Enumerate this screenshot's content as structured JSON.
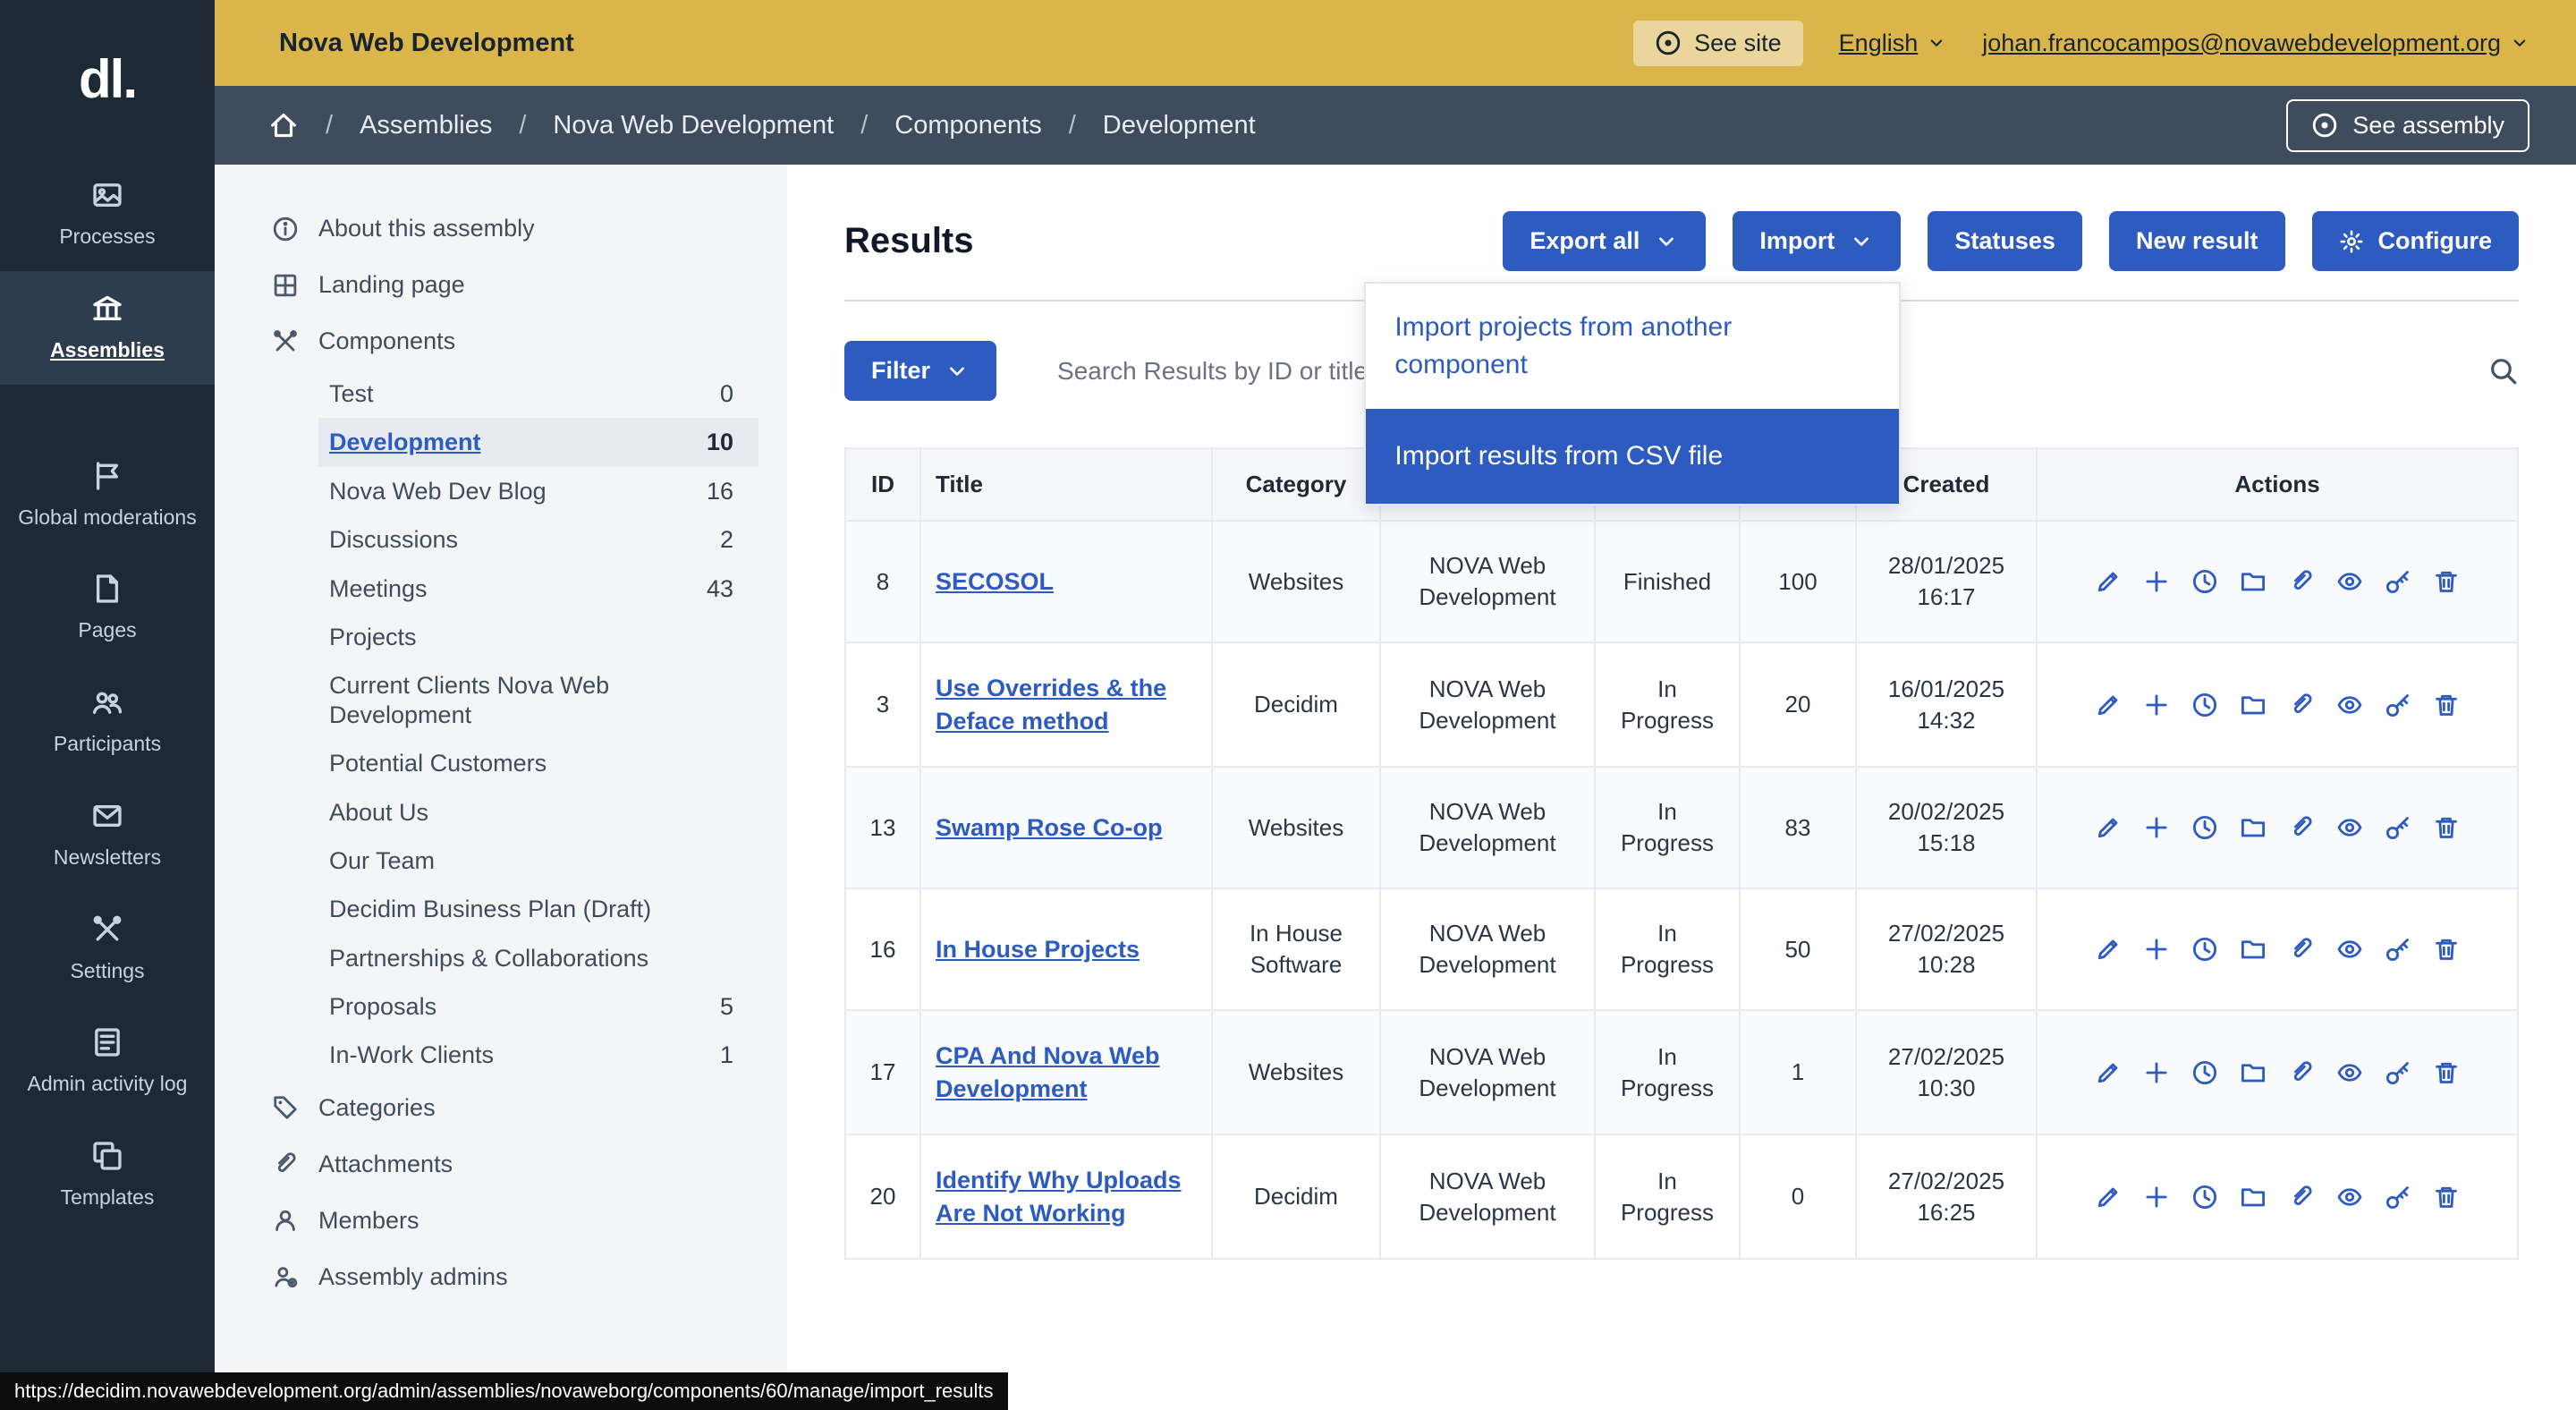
{
  "topbar": {
    "title": "Nova Web Development",
    "see_site_label": "See site",
    "language_label": "English",
    "user_email": "johan.francocampos@novawebdevelopment.org"
  },
  "breadcrumb": {
    "items": [
      "Assemblies",
      "Nova Web Development",
      "Components",
      "Development"
    ],
    "see_assembly_label": "See assembly"
  },
  "sidebar": {
    "items": [
      {
        "label": "Processes",
        "icon": "photo",
        "active": false
      },
      {
        "label": "Assemblies",
        "icon": "bank",
        "active": true
      },
      {
        "label": "Global moderations",
        "icon": "flag",
        "active": false
      },
      {
        "label": "Pages",
        "icon": "doc",
        "active": false
      },
      {
        "label": "Participants",
        "icon": "people",
        "active": false
      },
      {
        "label": "Newsletters",
        "icon": "mail",
        "active": false
      },
      {
        "label": "Settings",
        "icon": "tools",
        "active": false
      },
      {
        "label": "Admin activity log",
        "icon": "list",
        "active": false
      },
      {
        "label": "Templates",
        "icon": "copy",
        "active": false
      }
    ]
  },
  "submenu": {
    "items": [
      {
        "type": "top",
        "label": "About this assembly",
        "icon": "info"
      },
      {
        "type": "top",
        "label": "Landing page",
        "icon": "grid"
      },
      {
        "type": "top",
        "label": "Components",
        "icon": "tools"
      },
      {
        "type": "child",
        "label": "Test",
        "count": "0",
        "active": false
      },
      {
        "type": "child",
        "label": "Development",
        "count": "10",
        "active": true
      },
      {
        "type": "child",
        "label": "Nova Web Dev Blog",
        "count": "16",
        "active": false
      },
      {
        "type": "child",
        "label": "Discussions",
        "count": "2",
        "active": false
      },
      {
        "type": "child",
        "label": "Meetings",
        "count": "43",
        "active": false
      },
      {
        "type": "child",
        "label": "Projects",
        "count": "",
        "active": false
      },
      {
        "type": "child",
        "label": "Current Clients Nova Web Development",
        "count": "",
        "active": false
      },
      {
        "type": "child",
        "label": "Potential Customers",
        "count": "",
        "active": false
      },
      {
        "type": "child",
        "label": "About Us",
        "count": "",
        "active": false
      },
      {
        "type": "child",
        "label": "Our Team",
        "count": "",
        "active": false
      },
      {
        "type": "child",
        "label": "Decidim Business Plan (Draft)",
        "count": "",
        "active": false
      },
      {
        "type": "child",
        "label": "Partnerships & Collaborations",
        "count": "",
        "active": false
      },
      {
        "type": "child",
        "label": "Proposals",
        "count": "5",
        "active": false
      },
      {
        "type": "child",
        "label": "In-Work Clients",
        "count": "1",
        "active": false
      },
      {
        "type": "top",
        "label": "Categories",
        "icon": "tag"
      },
      {
        "type": "top",
        "label": "Attachments",
        "icon": "clip"
      },
      {
        "type": "top",
        "label": "Members",
        "icon": "person"
      },
      {
        "type": "top",
        "label": "Assembly admins",
        "icon": "person-gear"
      }
    ]
  },
  "main": {
    "title": "Results",
    "toolbar": {
      "export_all": "Export all",
      "import": "Import",
      "statuses": "Statuses",
      "new_result": "New result",
      "configure": "Configure"
    },
    "filter_label": "Filter",
    "search_placeholder": "Search Results by ID or title.",
    "import_menu": {
      "items": [
        {
          "label": "Import projects from another component",
          "highlighted": false
        },
        {
          "label": "Import results from CSV file",
          "highlighted": true
        }
      ]
    },
    "table": {
      "headers": [
        "ID",
        "Title",
        "Category",
        "",
        "",
        "",
        "Created",
        "Actions"
      ],
      "action_icons": [
        "pencil",
        "plus",
        "clock",
        "folder",
        "paperclip",
        "eye",
        "key",
        "trash"
      ],
      "rows": [
        {
          "id": "8",
          "title": "SECOSOL",
          "category": "Websites",
          "scope": "NOVA Web Development",
          "status": "Finished",
          "progress": "100",
          "created_date": "28/01/2025",
          "created_time": "16:17"
        },
        {
          "id": "3",
          "title": "Use Overrides & the Deface method",
          "category": "Decidim",
          "scope": "NOVA Web Development",
          "status": "In Progress",
          "progress": "20",
          "created_date": "16/01/2025",
          "created_time": "14:32"
        },
        {
          "id": "13",
          "title": "Swamp Rose Co-op",
          "category": "Websites",
          "scope": "NOVA Web Development",
          "status": "In Progress",
          "progress": "83",
          "created_date": "20/02/2025",
          "created_time": "15:18"
        },
        {
          "id": "16",
          "title": "In House Projects",
          "category": "In House Software",
          "scope": "NOVA Web Development",
          "status": "In Progress",
          "progress": "50",
          "created_date": "27/02/2025",
          "created_time": "10:28"
        },
        {
          "id": "17",
          "title": "CPA And Nova Web Development",
          "category": "Websites",
          "scope": "NOVA Web Development",
          "status": "In Progress",
          "progress": "1",
          "created_date": "27/02/2025",
          "created_time": "10:30"
        },
        {
          "id": "20",
          "title": "Identify Why Uploads Are Not Working",
          "category": "Decidim",
          "scope": "NOVA Web Development",
          "status": "In Progress",
          "progress": "0",
          "created_date": "27/02/2025",
          "created_time": "16:25"
        }
      ]
    }
  },
  "status_tooltip": {
    "url": "https://decidim.novawebdevelopment.org/admin/assemblies/novaweborg/components/60/manage/import_results"
  },
  "colors": {
    "primary_blue": "#2d5bc0",
    "topbar_yellow": "#d9b54a",
    "sidebar_navy": "#1e2936",
    "breadcrumb_slate": "#3e4c5e"
  },
  "logo_text": "dl."
}
